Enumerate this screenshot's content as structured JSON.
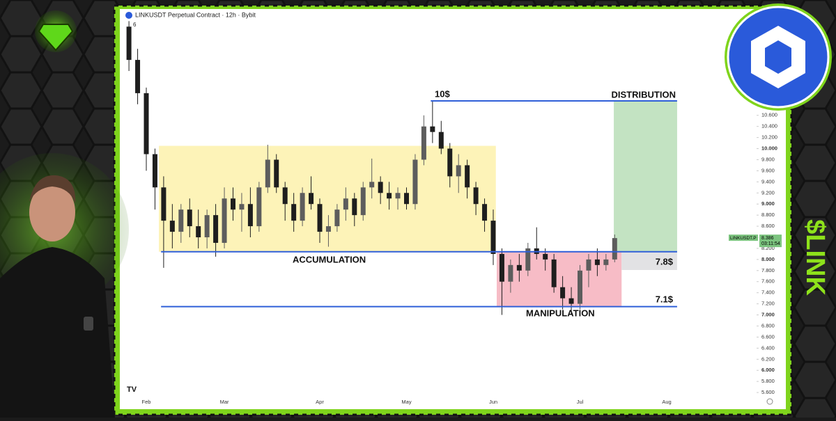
{
  "chart_data": {
    "type": "candlestick",
    "title": "LINKUSDT Perpetual Contract · 12h · Bybit",
    "indicator": "6",
    "side_text": "$LINK",
    "categories": [
      null,
      null,
      "Feb",
      null,
      null,
      null,
      null,
      null,
      null,
      null,
      null,
      "Mar",
      null,
      null,
      null,
      null,
      null,
      null,
      null,
      null,
      null,
      null,
      "Apr",
      null,
      null,
      null,
      null,
      null,
      null,
      null,
      null,
      null,
      "May",
      null,
      null,
      null,
      null,
      null,
      null,
      null,
      null,
      null,
      "Jun",
      null,
      null,
      null,
      null,
      null,
      null,
      null,
      null,
      null,
      "Jul",
      null,
      null,
      null,
      null,
      null,
      null,
      null,
      null,
      null,
      "Aug"
    ],
    "values": [
      [
        12.2,
        12.3,
        11.4,
        11.6
      ],
      [
        11.6,
        11.8,
        10.8,
        11.0
      ],
      [
        11.0,
        11.1,
        9.6,
        9.9
      ],
      [
        9.9,
        10.0,
        8.9,
        9.3
      ],
      [
        9.3,
        9.5,
        7.85,
        8.7
      ],
      [
        8.7,
        9.0,
        8.2,
        8.5
      ],
      [
        8.5,
        9.0,
        8.3,
        8.9
      ],
      [
        8.9,
        9.1,
        8.4,
        8.6
      ],
      [
        8.6,
        8.9,
        8.2,
        8.4
      ],
      [
        8.4,
        8.9,
        8.2,
        8.8
      ],
      [
        8.8,
        9.0,
        8.05,
        8.3
      ],
      [
        8.3,
        9.3,
        8.2,
        9.1
      ],
      [
        9.1,
        9.3,
        8.7,
        8.9
      ],
      [
        8.9,
        9.2,
        8.5,
        9.0
      ],
      [
        9.0,
        9.3,
        8.4,
        8.6
      ],
      [
        8.6,
        9.4,
        8.5,
        9.3
      ],
      [
        9.3,
        10.07,
        9.2,
        9.8
      ],
      [
        9.8,
        9.9,
        9.2,
        9.3
      ],
      [
        9.3,
        9.4,
        8.7,
        9.0
      ],
      [
        9.0,
        9.2,
        8.5,
        8.7
      ],
      [
        8.7,
        9.3,
        8.6,
        9.2
      ],
      [
        9.2,
        9.5,
        8.9,
        9.0
      ],
      [
        9.0,
        9.1,
        8.3,
        8.5
      ],
      [
        8.5,
        8.8,
        8.23,
        8.6
      ],
      [
        8.6,
        9.0,
        8.5,
        8.9
      ],
      [
        8.9,
        9.3,
        8.7,
        9.1
      ],
      [
        9.1,
        9.2,
        8.6,
        8.8
      ],
      [
        8.8,
        9.4,
        8.7,
        9.3
      ],
      [
        9.3,
        9.82,
        9.1,
        9.4
      ],
      [
        9.4,
        9.5,
        9.0,
        9.2
      ],
      [
        9.2,
        9.4,
        8.9,
        9.1
      ],
      [
        9.1,
        9.3,
        8.9,
        9.2
      ],
      [
        9.2,
        9.3,
        8.9,
        9.0
      ],
      [
        9.0,
        9.9,
        8.9,
        9.8
      ],
      [
        9.8,
        10.6,
        9.7,
        10.4
      ],
      [
        10.4,
        10.86,
        10.1,
        10.3
      ],
      [
        10.3,
        10.5,
        9.9,
        10.0
      ],
      [
        10.0,
        10.1,
        9.3,
        9.5
      ],
      [
        9.5,
        9.9,
        9.2,
        9.7
      ],
      [
        9.7,
        9.8,
        9.1,
        9.3
      ],
      [
        9.3,
        9.4,
        8.8,
        9.0
      ],
      [
        9.0,
        9.1,
        8.5,
        8.7
      ],
      [
        8.7,
        8.9,
        7.9,
        8.1
      ],
      [
        8.1,
        8.2,
        7.0,
        7.6
      ],
      [
        7.6,
        8.0,
        7.4,
        7.9
      ],
      [
        7.9,
        8.1,
        7.6,
        7.8
      ],
      [
        7.8,
        8.3,
        7.7,
        8.2
      ],
      [
        8.2,
        8.58,
        8.0,
        8.1
      ],
      [
        8.1,
        8.2,
        7.8,
        8.0
      ],
      [
        8.0,
        8.1,
        7.4,
        7.5
      ],
      [
        7.5,
        7.7,
        7.1,
        7.3
      ],
      [
        7.3,
        7.5,
        7.0,
        7.2
      ],
      [
        7.2,
        7.9,
        7.1,
        7.8
      ],
      [
        7.8,
        8.1,
        7.5,
        8.0
      ],
      [
        8.0,
        8.2,
        7.7,
        7.9
      ],
      [
        7.9,
        8.1,
        7.8,
        8.0
      ],
      [
        8.0,
        8.45,
        7.95,
        8.386
      ],
      null,
      null,
      null,
      null,
      null,
      null
    ],
    "up_color": "#5d5d5d",
    "down_color": "#1e1e1e",
    "ylim": [
      5.4,
      12.53
    ],
    "yticks": [
      {
        "value": 10.6,
        "label": "10.600"
      },
      {
        "value": 10.4,
        "label": "10.400"
      },
      {
        "value": 10.2,
        "label": "10.200"
      },
      {
        "value": 10,
        "label": "10.000"
      },
      {
        "value": 9.8,
        "label": "9.800"
      },
      {
        "value": 9.6,
        "label": "9.600"
      },
      {
        "value": 9.4,
        "label": "9.400"
      },
      {
        "value": 9.2,
        "label": "9.200"
      },
      {
        "value": 9,
        "label": "9.000"
      },
      {
        "value": 8.8,
        "label": "8.800"
      },
      {
        "value": 8.6,
        "label": "8.600"
      },
      {
        "value": 8.4,
        "label": "8.400"
      },
      {
        "value": 8.2,
        "label": "8.200"
      },
      {
        "value": 8,
        "label": "8.000"
      },
      {
        "value": 7.8,
        "label": "7.800"
      },
      {
        "value": 7.6,
        "label": "7.600"
      },
      {
        "value": 7.4,
        "label": "7.400"
      },
      {
        "value": 7.2,
        "label": "7.200"
      },
      {
        "value": 7,
        "label": "7.000"
      },
      {
        "value": 6.8,
        "label": "6.800"
      },
      {
        "value": 6.6,
        "label": "6.600"
      },
      {
        "value": 6.4,
        "label": "6.400"
      },
      {
        "value": 6.2,
        "label": "6.200"
      },
      {
        "value": 6,
        "label": "6.000"
      },
      {
        "value": 5.8,
        "label": "5.800"
      },
      {
        "value": 5.6,
        "label": "5.600"
      }
    ],
    "last_price": {
      "symbol": "LINKUSDT.P",
      "value": 8.386,
      "countdown": "03:11:54",
      "color": "#7cc47f"
    },
    "zones": [
      {
        "top": 10.05,
        "bottom": 8.14,
        "from": 3.45,
        "to": 42.3,
        "color": "#fdf3b8"
      },
      {
        "top": 10.86,
        "bottom": 8.14,
        "from": 55.9,
        "to": 63.2,
        "color": "#c3e3c2"
      },
      {
        "top": 8.14,
        "bottom": 7.15,
        "from": 42.4,
        "to": 56.8,
        "color": "#f7bcc6"
      },
      {
        "top": 8.14,
        "bottom": 7.81,
        "from": 56.8,
        "to": 63.2,
        "color": "#e2e2e4"
      }
    ],
    "lines": [
      {
        "value": 10.86,
        "from": 34.8,
        "to": 63.2
      },
      {
        "value": 8.14,
        "from": 3.7,
        "to": 63.2
      },
      {
        "value": 7.15,
        "from": 3.7,
        "to": 63.2
      }
    ],
    "line_color": "#2f5fd8",
    "annotations": [
      "10$",
      "DISTRIBUTION",
      "ACCUMULATION",
      "MANIPULATION",
      "7.8$",
      "7.1$"
    ]
  }
}
